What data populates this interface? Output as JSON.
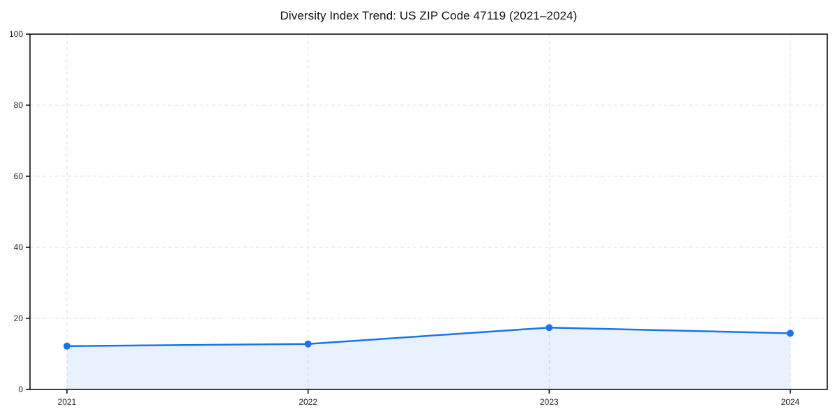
{
  "page": {
    "background": "#ffffff"
  },
  "chart_data": {
    "type": "area",
    "title": "Diversity Index Trend: US ZIP Code 47119 (2021–2024)",
    "xlabel": "",
    "ylabel": "",
    "x": [
      2021,
      2022,
      2023,
      2024
    ],
    "x_tick_labels": [
      "2021",
      "2022",
      "2023",
      "2024"
    ],
    "series": [
      {
        "name": "Diversity Index",
        "values": [
          12.2,
          12.8,
          17.4,
          15.8
        ]
      }
    ],
    "ylim": [
      0,
      100
    ],
    "y_ticks": [
      0,
      20,
      40,
      60,
      80,
      100
    ],
    "y_tick_labels": [
      "0",
      "20",
      "40",
      "60",
      "80",
      "100"
    ],
    "grid": "dashed, both axes",
    "legend_position": "none",
    "marker": "circle",
    "colors": {
      "line": "#1a73e8",
      "marker": "#1a73e8",
      "fill": "#1a73e8",
      "fill_opacity": 0.1,
      "grid": "#dfdfdf",
      "spine": "#000000",
      "tick_label": "#222222",
      "title": "#111111"
    }
  }
}
